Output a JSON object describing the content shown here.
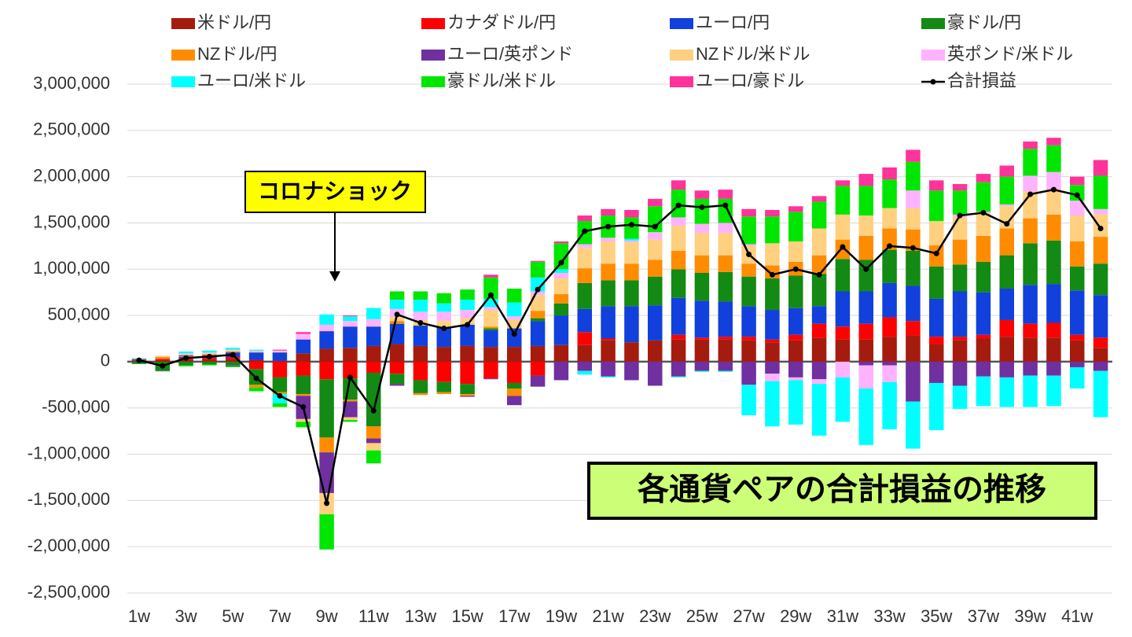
{
  "chart_data": {
    "type": "bar",
    "stacked": true,
    "annotations": [
      "コロナショック",
      "各通貨ペアの合計損益の推移"
    ],
    "categories": [
      "1w",
      null,
      "3w",
      null,
      "5w",
      null,
      "7w",
      null,
      "9w",
      null,
      "11w",
      null,
      "13w",
      null,
      "15w",
      null,
      "17w",
      null,
      "19w",
      null,
      "21w",
      null,
      "23w",
      null,
      "25w",
      null,
      "27w",
      null,
      "29w",
      null,
      "31w",
      null,
      "33w",
      null,
      "35w",
      null,
      "37w",
      null,
      "39w",
      null,
      "41w",
      null
    ],
    "ylim": [
      -2500000,
      3000000
    ],
    "yticks": [
      {
        "value": -2500000,
        "label": "-2,500,000"
      },
      {
        "value": -2000000,
        "label": "-2,000,000"
      },
      {
        "value": -1500000,
        "label": "-1,500,000"
      },
      {
        "value": -1000000,
        "label": "-1,000,000"
      },
      {
        "value": -500000,
        "label": "-500,000"
      },
      0,
      {
        "value": 500000,
        "label": "500,000"
      },
      {
        "value": 1000000,
        "label": "1,000,000"
      },
      {
        "value": 1500000,
        "label": "1,500,000"
      },
      {
        "value": 2000000,
        "label": "2,000,000"
      },
      {
        "value": 2500000,
        "label": "2,500,000"
      },
      {
        "value": 3000000,
        "label": "3,000,000"
      }
    ],
    "grid": true,
    "legend": "top",
    "series": [
      {
        "name": "米ドル/円",
        "color": "#a51c0f",
        "values": [
          10000,
          20000,
          20000,
          20000,
          30000,
          20000,
          10000,
          90000,
          140000,
          150000,
          170000,
          190000,
          170000,
          160000,
          170000,
          160000,
          160000,
          170000,
          180000,
          180000,
          230000,
          210000,
          230000,
          240000,
          240000,
          240000,
          230000,
          210000,
          230000,
          260000,
          240000,
          240000,
          270000,
          280000,
          190000,
          230000,
          250000,
          270000,
          260000,
          260000,
          230000,
          150000
        ]
      },
      {
        "name": "カナダドル/円",
        "color": "#ff0000",
        "values": [
          5000,
          10000,
          10000,
          20000,
          20000,
          -80000,
          -170000,
          -150000,
          -190000,
          -180000,
          -120000,
          -130000,
          -200000,
          -220000,
          -240000,
          -180000,
          -230000,
          -150000,
          0,
          140000,
          20000,
          0,
          0,
          50000,
          20000,
          30000,
          40000,
          30000,
          60000,
          150000,
          140000,
          170000,
          210000,
          160000,
          80000,
          40000,
          40000,
          180000,
          150000,
          160000,
          60000,
          110000
        ]
      },
      {
        "name": "ユーロ/円",
        "color": "#1240dc",
        "values": [
          10000,
          0,
          20000,
          30000,
          50000,
          80000,
          90000,
          150000,
          190000,
          230000,
          210000,
          220000,
          220000,
          210000,
          230000,
          180000,
          200000,
          270000,
          320000,
          250000,
          350000,
          390000,
          380000,
          400000,
          400000,
          380000,
          330000,
          320000,
          290000,
          190000,
          380000,
          350000,
          370000,
          380000,
          410000,
          490000,
          460000,
          340000,
          420000,
          420000,
          480000,
          460000
        ]
      },
      {
        "name": "豪ドル/円",
        "color": "#138a13",
        "values": [
          -25000,
          -90000,
          -40000,
          -30000,
          -40000,
          -170000,
          -160000,
          -200000,
          -630000,
          -230000,
          -580000,
          -110000,
          -140000,
          -110000,
          -110000,
          20000,
          -60000,
          30000,
          130000,
          280000,
          280000,
          280000,
          310000,
          310000,
          300000,
          320000,
          320000,
          340000,
          350000,
          350000,
          350000,
          340000,
          360000,
          380000,
          350000,
          290000,
          330000,
          360000,
          450000,
          470000,
          260000,
          340000
        ]
      },
      {
        "name": "NZドル/円",
        "color": "#ff8c00",
        "values": [
          5000,
          20000,
          10000,
          10000,
          10000,
          -30000,
          -20000,
          -20000,
          -160000,
          -20000,
          -130000,
          30000,
          -20000,
          -20000,
          -20000,
          20000,
          -80000,
          80000,
          100000,
          160000,
          180000,
          180000,
          180000,
          200000,
          190000,
          180000,
          140000,
          140000,
          150000,
          200000,
          210000,
          260000,
          230000,
          230000,
          230000,
          270000,
          280000,
          290000,
          270000,
          280000,
          270000,
          290000
        ]
      },
      {
        "name": "ユーロ/英ポンド",
        "color": "#7030a0",
        "values": [
          0,
          -10000,
          10000,
          0,
          -10000,
          0,
          0,
          -250000,
          -440000,
          -170000,
          -50000,
          -20000,
          0,
          0,
          -10000,
          -10000,
          -100000,
          -120000,
          -200000,
          -100000,
          -160000,
          -200000,
          -260000,
          -160000,
          -100000,
          -100000,
          -250000,
          -130000,
          -170000,
          -190000,
          0,
          -40000,
          -40000,
          -430000,
          -230000,
          -260000,
          -160000,
          -170000,
          -150000,
          -150000,
          -60000,
          -100000
        ]
      },
      {
        "name": "NZドル/米ドル",
        "color": "#ffd080",
        "values": [
          0,
          10000,
          10000,
          10000,
          10000,
          10000,
          10000,
          -30000,
          -230000,
          -30000,
          -80000,
          40000,
          60000,
          70000,
          70000,
          180000,
          90000,
          170000,
          170000,
          220000,
          240000,
          230000,
          220000,
          270000,
          240000,
          240000,
          190000,
          240000,
          220000,
          290000,
          270000,
          220000,
          220000,
          230000,
          260000,
          240000,
          240000,
          240000,
          290000,
          270000,
          280000,
          240000
        ]
      },
      {
        "name": "英ポンド/米ドル",
        "color": "#ffb3ff",
        "values": [
          5000,
          5000,
          10000,
          10000,
          10000,
          10000,
          10000,
          60000,
          70000,
          60000,
          80000,
          90000,
          90000,
          100000,
          90000,
          30000,
          40000,
          40000,
          60000,
          40000,
          40000,
          20000,
          80000,
          90000,
          100000,
          110000,
          20000,
          -80000,
          -30000,
          -50000,
          -170000,
          -250000,
          -180000,
          190000,
          0,
          30000,
          20000,
          20000,
          170000,
          190000,
          160000,
          60000
        ]
      },
      {
        "name": "ユーロ/米ドル",
        "color": "#00ffff",
        "values": [
          5000,
          0,
          20000,
          20000,
          20000,
          10000,
          -100000,
          0,
          110000,
          50000,
          120000,
          100000,
          130000,
          90000,
          110000,
          90000,
          150000,
          150000,
          40000,
          -40000,
          -10000,
          20000,
          0,
          -10000,
          -10000,
          -10000,
          -330000,
          -490000,
          -480000,
          -560000,
          -480000,
          -610000,
          -510000,
          -510000,
          -510000,
          -250000,
          -320000,
          -320000,
          -340000,
          -330000,
          -230000,
          -500000
        ]
      },
      {
        "name": "豪ドル/米ドル",
        "color": "#00e600",
        "values": [
          0,
          -5000,
          -10000,
          -10000,
          -10000,
          -40000,
          -40000,
          -60000,
          -380000,
          -20000,
          -140000,
          90000,
          90000,
          110000,
          110000,
          230000,
          150000,
          170000,
          280000,
          250000,
          240000,
          230000,
          280000,
          300000,
          270000,
          260000,
          300000,
          290000,
          320000,
          290000,
          310000,
          320000,
          310000,
          310000,
          330000,
          260000,
          320000,
          300000,
          290000,
          290000,
          170000,
          360000
        ]
      },
      {
        "name": "ユーロ/豪ドル",
        "color": "#ff3399",
        "values": [
          0,
          0,
          0,
          0,
          0,
          0,
          10000,
          20000,
          0,
          10000,
          0,
          0,
          0,
          0,
          0,
          30000,
          0,
          10000,
          20000,
          60000,
          70000,
          80000,
          80000,
          100000,
          90000,
          100000,
          80000,
          70000,
          60000,
          60000,
          60000,
          130000,
          130000,
          130000,
          110000,
          70000,
          90000,
          120000,
          80000,
          80000,
          90000,
          170000
        ]
      },
      {
        "name": "合計損益",
        "type": "line",
        "color": "#000000",
        "values": [
          15000,
          -45000,
          40000,
          55000,
          75000,
          -180000,
          -370000,
          -490000,
          -1530000,
          -170000,
          -530000,
          510000,
          420000,
          360000,
          400000,
          720000,
          300000,
          780000,
          1070000,
          1410000,
          1460000,
          1480000,
          1460000,
          1690000,
          1670000,
          1690000,
          1160000,
          940000,
          1000000,
          940000,
          1240000,
          1000000,
          1250000,
          1230000,
          1170000,
          1580000,
          1610000,
          1490000,
          1810000,
          1860000,
          1800000,
          1440000
        ]
      }
    ]
  }
}
